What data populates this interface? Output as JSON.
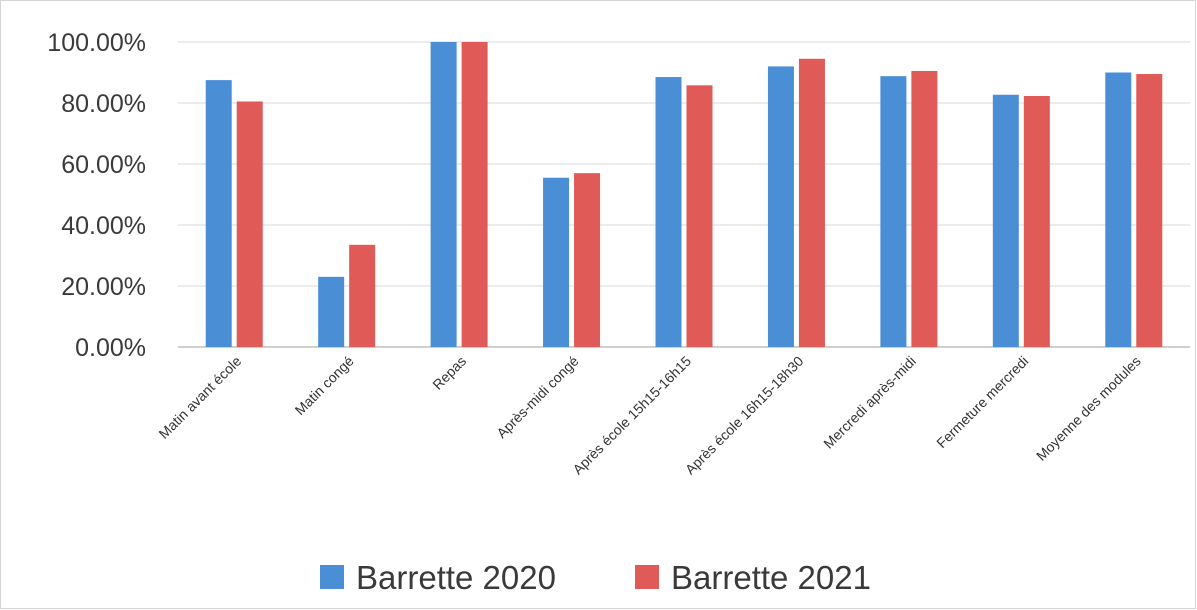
{
  "chart_data": {
    "type": "bar",
    "title": "",
    "xlabel": "",
    "ylabel": "",
    "categories": [
      "Matin avant école",
      "Matin congé",
      "Repas",
      "Après-midi congé",
      "Après école 15h15-16h15",
      "Après école 16h15-18h30",
      "Mercredi après-midi",
      "Fermeture mercredi",
      "Moyenne des modules"
    ],
    "series": [
      {
        "name": "Barrette 2020",
        "color": "#4a8fd6",
        "values": [
          87.5,
          23.0,
          100.0,
          55.5,
          88.5,
          92.0,
          88.8,
          82.7,
          90.0
        ]
      },
      {
        "name": "Barrette 2021",
        "color": "#e05a57",
        "values": [
          80.5,
          33.5,
          100.0,
          57.0,
          85.8,
          94.5,
          90.5,
          82.3,
          89.5
        ]
      }
    ],
    "ylim": [
      0,
      100
    ],
    "yticks": [
      0,
      20,
      40,
      60,
      80,
      100
    ],
    "ytick_labels": [
      "0.00%",
      "20.00%",
      "40.00%",
      "60.00%",
      "80.00%",
      "100.00%"
    ],
    "grid": true,
    "legend_position": "bottom"
  }
}
